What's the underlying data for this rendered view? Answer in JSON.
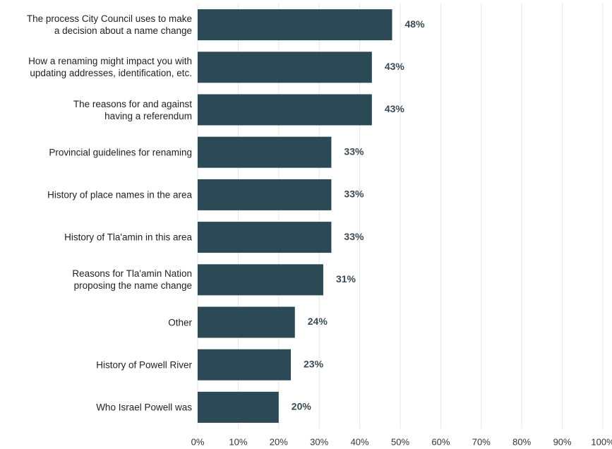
{
  "chart_data": {
    "type": "hbar",
    "categories": [
      "The process City Council uses to make\na decision about a name change",
      "How a renaming might impact you with\nupdating addresses, identification, etc.",
      "The reasons for and against\nhaving a referendum",
      "Provincial guidelines for renaming",
      "History of place names in the area",
      "History of Tla'amin in this area",
      "Reasons for Tla'amin Nation\nproposing the name change",
      "Other",
      "History of Powell River",
      "Who Israel Powell was"
    ],
    "values": [
      48,
      43,
      43,
      33,
      33,
      33,
      31,
      24,
      23,
      20
    ],
    "value_labels": [
      "48%",
      "43%",
      "43%",
      "33%",
      "33%",
      "33%",
      "31%",
      "24%",
      "23%",
      "20%"
    ],
    "color": "#2c4a55",
    "xlim": [
      0,
      100
    ],
    "xticks": [
      {
        "value": 0,
        "label": "0%"
      },
      {
        "value": 10,
        "label": "10%"
      },
      {
        "value": 20,
        "label": "20%"
      },
      {
        "value": 30,
        "label": "30%"
      },
      {
        "value": 40,
        "label": "40%"
      },
      {
        "value": 50,
        "label": "50%"
      },
      {
        "value": 60,
        "label": "60%"
      },
      {
        "value": 70,
        "label": "70%"
      },
      {
        "value": 80,
        "label": "80%"
      },
      {
        "value": 90,
        "label": "90%"
      },
      {
        "value": 100,
        "label": "100%"
      }
    ],
    "grid": true
  }
}
